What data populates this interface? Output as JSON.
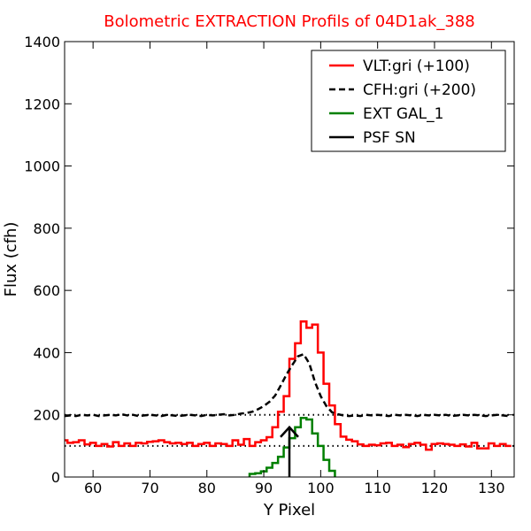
{
  "chart_data": {
    "type": "line",
    "title": "Bolometric EXTRACTION Profils of 04D1ak_388",
    "title_color": "#ff0000",
    "xlabel": "Y Pixel",
    "ylabel": "Flux (cfh)",
    "xlim": [
      55,
      134
    ],
    "ylim": [
      0,
      1400
    ],
    "xticks": [
      60,
      70,
      80,
      90,
      100,
      110,
      120,
      130
    ],
    "yticks": [
      0,
      200,
      400,
      600,
      800,
      1000,
      1200,
      1400
    ],
    "xtick_labels": [
      "60",
      "70",
      "80",
      "90",
      "100",
      "110",
      "120",
      "130"
    ],
    "ytick_labels": [
      "0",
      "200",
      "400",
      "600",
      "800",
      "1000",
      "1200",
      "1400"
    ],
    "grid": false,
    "legend_position": "top-right",
    "reference_lines": [
      {
        "y": 100,
        "style": "dotted",
        "color": "#000000"
      },
      {
        "y": 200,
        "style": "dotted",
        "color": "#000000"
      }
    ],
    "series": [
      {
        "name": "VLT:gri (+100)",
        "color": "#ff0000",
        "style": "steps",
        "x": [
          55,
          56,
          57,
          58,
          59,
          60,
          61,
          62,
          63,
          64,
          65,
          66,
          67,
          68,
          69,
          70,
          71,
          72,
          73,
          74,
          75,
          76,
          77,
          78,
          79,
          80,
          81,
          82,
          83,
          84,
          85,
          86,
          87,
          88,
          89,
          90,
          91,
          92,
          93,
          94,
          95,
          96,
          97,
          98,
          99,
          100,
          101,
          102,
          103,
          104,
          105,
          106,
          107,
          108,
          109,
          110,
          111,
          112,
          113,
          114,
          115,
          116,
          117,
          118,
          119,
          120,
          121,
          122,
          123,
          124,
          125,
          126,
          127,
          128,
          129,
          130,
          131,
          132,
          133
        ],
        "y": [
          118,
          110,
          112,
          118,
          105,
          110,
          100,
          106,
          98,
          112,
          100,
          108,
          100,
          110,
          108,
          113,
          115,
          118,
          112,
          108,
          110,
          106,
          110,
          100,
          106,
          110,
          100,
          108,
          106,
          100,
          118,
          104,
          122,
          100,
          112,
          118,
          128,
          160,
          210,
          260,
          380,
          430,
          500,
          480,
          490,
          400,
          300,
          230,
          170,
          130,
          120,
          115,
          105,
          100,
          104,
          102,
          108,
          110,
          100,
          104,
          96,
          106,
          110,
          104,
          88,
          106,
          108,
          106,
          104,
          100,
          105,
          98,
          110,
          92,
          92,
          108,
          100,
          106,
          100
        ]
      },
      {
        "name": "CFH:gri (+200)",
        "color": "#000000",
        "style": "dashed",
        "x": [
          55,
          56,
          57,
          58,
          59,
          60,
          61,
          62,
          63,
          64,
          65,
          66,
          67,
          68,
          69,
          70,
          71,
          72,
          73,
          74,
          75,
          76,
          77,
          78,
          79,
          80,
          81,
          82,
          83,
          84,
          85,
          86,
          87,
          88,
          89,
          90,
          91,
          92,
          93,
          94,
          95,
          96,
          97,
          98,
          99,
          100,
          101,
          102,
          103,
          104,
          105,
          106,
          107,
          108,
          109,
          110,
          111,
          112,
          113,
          114,
          115,
          116,
          117,
          118,
          119,
          120,
          121,
          122,
          123,
          124,
          125,
          126,
          127,
          128,
          129,
          130,
          131,
          132,
          133
        ],
        "y": [
          196,
          198,
          196,
          200,
          198,
          200,
          196,
          198,
          200,
          198,
          202,
          198,
          200,
          196,
          198,
          200,
          198,
          196,
          200,
          198,
          196,
          198,
          200,
          198,
          196,
          200,
          198,
          200,
          202,
          198,
          200,
          204,
          206,
          210,
          218,
          228,
          242,
          262,
          295,
          330,
          360,
          388,
          395,
          365,
          305,
          260,
          228,
          208,
          202,
          198,
          196,
          198,
          196,
          200,
          198,
          200,
          198,
          196,
          200,
          198,
          200,
          198,
          196,
          200,
          198,
          200,
          198,
          200,
          196,
          198,
          200,
          198,
          200,
          198,
          196,
          198,
          200,
          198,
          196
        ]
      },
      {
        "name": "EXT GAL_1",
        "color": "#008000",
        "style": "steps",
        "x": [
          88,
          89,
          90,
          91,
          92,
          93,
          94,
          95,
          96,
          97,
          98,
          99,
          100,
          101,
          102
        ],
        "y": [
          10,
          12,
          18,
          30,
          45,
          65,
          95,
          125,
          160,
          190,
          185,
          140,
          100,
          55,
          20
        ]
      }
    ],
    "psf_marker": {
      "name": "PSF SN",
      "color": "#000000",
      "x": 94.5,
      "y_bottom": 0,
      "y_top": 160
    }
  }
}
